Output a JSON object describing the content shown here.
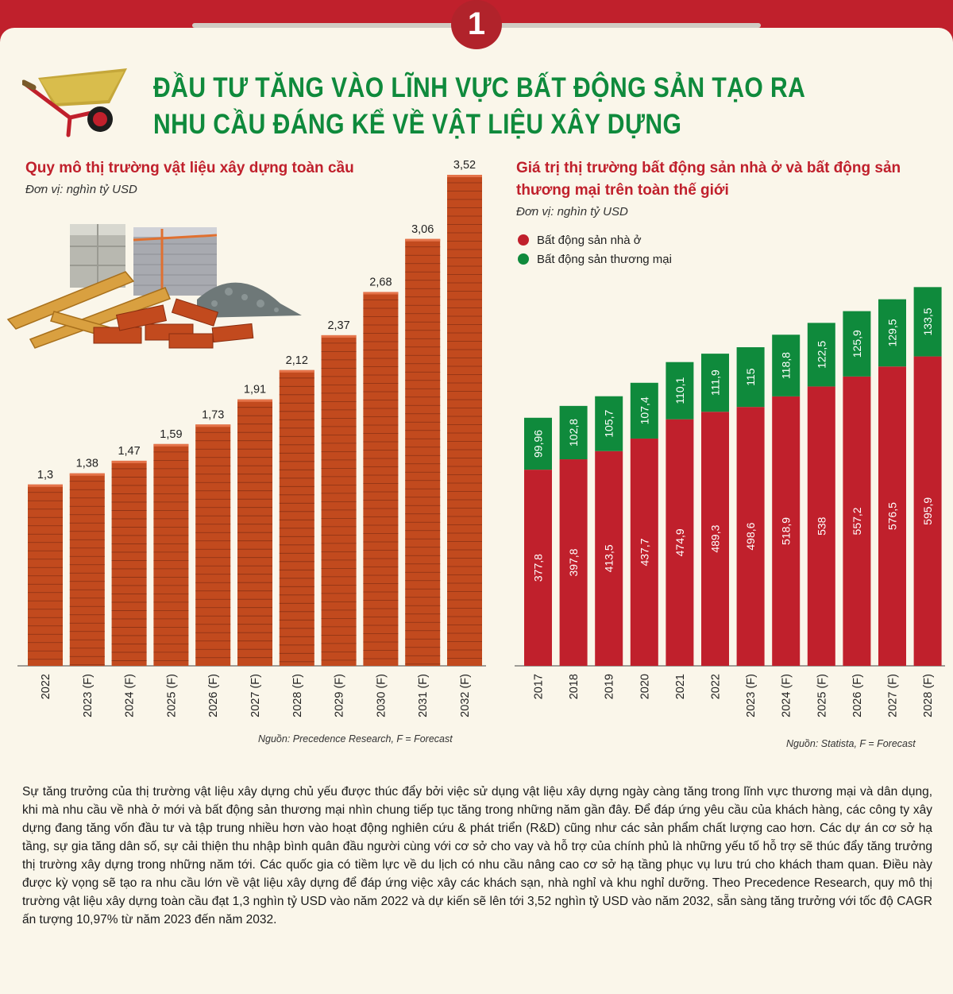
{
  "badge": "1",
  "headline": {
    "line1": "ĐẦU TƯ TĂNG VÀO LĨNH VỰC BẤT ĐỘNG SẢN TẠO RA",
    "line2": "NHU CẦU ĐÁNG KỂ VỀ VẬT LIỆU XÂY DỰNG"
  },
  "colors": {
    "brick": "#c24a1e",
    "residential": "#c0202c",
    "commercial": "#0f8a3c",
    "accent": "#c0202c"
  },
  "chart_data": [
    {
      "type": "bar",
      "title": "Quy mô thị trường vật liệu xây dựng toàn cầu",
      "unit": "Đơn vị: nghìn tỷ USD",
      "categories": [
        "2022",
        "2023 (F)",
        "2024 (F)",
        "2025 (F)",
        "2026 (F)",
        "2027 (F)",
        "2028 (F)",
        "2029 (F)",
        "2030 (F)",
        "2031 (F)",
        "2032 (F)"
      ],
      "values": [
        1.3,
        1.38,
        1.47,
        1.59,
        1.73,
        1.91,
        2.12,
        2.37,
        2.68,
        3.06,
        3.52
      ],
      "value_labels": [
        "1,3",
        "1,38",
        "1,47",
        "1,59",
        "1,73",
        "1,91",
        "2,12",
        "2,37",
        "2,68",
        "3,06",
        "3,52"
      ],
      "ylim": [
        0,
        3.52
      ],
      "source": "Nguồn: Precedence Research, F = Forecast"
    },
    {
      "type": "bar",
      "stacked": true,
      "title": "Giá trị thị trường bất động sản nhà ở và bất động sản thương mại trên toàn thế giới",
      "unit": "Đơn vị: nghìn tỷ USD",
      "categories": [
        "2017",
        "2018",
        "2019",
        "2020",
        "2021",
        "2022",
        "2023 (F)",
        "2024 (F)",
        "2025 (F)",
        "2026 (F)",
        "2027 (F)",
        "2028 (F)"
      ],
      "series": [
        {
          "name": "Bất động sản nhà ở",
          "values": [
            377.8,
            397.8,
            413.5,
            437.7,
            474.9,
            489.3,
            498.6,
            518.9,
            538,
            557.2,
            576.5,
            595.9
          ],
          "labels": [
            "377,8",
            "397,8",
            "413,5",
            "437,7",
            "474,9",
            "489,3",
            "498,6",
            "518,9",
            "538",
            "557,2",
            "576,5",
            "595,9"
          ]
        },
        {
          "name": "Bất động sản thương mại",
          "values": [
            99.96,
            102.8,
            105.7,
            107.4,
            110.1,
            111.9,
            115,
            118.8,
            122.5,
            125.9,
            129.5,
            133.5
          ],
          "labels": [
            "99,96",
            "102,8",
            "105,7",
            "107,4",
            "110,1",
            "111,9",
            "115",
            "118,8",
            "122,5",
            "125,9",
            "129,5",
            "133,5"
          ]
        }
      ],
      "legend": "top-left",
      "source": "Nguồn: Statista, F = Forecast"
    }
  ],
  "paragraph": "Sự tăng trưởng của thị trường vật liệu xây dựng chủ yếu được thúc đẩy bởi việc sử dụng vật liệu xây dựng ngày càng tăng trong lĩnh vực thương mại và dân dụng, khi mà nhu cầu về nhà ở mới và bất động sản thương mại nhìn chung tiếp tục tăng trong những năm gần đây. Để đáp ứng yêu cầu của khách hàng, các công ty xây dựng đang tăng vốn đầu tư và tập trung nhiều hơn vào hoạt động nghiên cứu & phát triển (R&D) cũng như các sản phẩm chất lượng cao hơn. Các dự án cơ sở hạ tầng, sự gia tăng dân số, sự cải thiện thu nhập bình quân đầu người cùng với cơ sở cho vay và hỗ trợ của chính phủ là những yếu tố hỗ trợ sẽ thúc đẩy tăng trưởng thị trường xây dựng trong những năm tới. Các quốc gia có tiềm lực về du lịch có nhu cầu nâng cao cơ sở hạ tầng phục vụ lưu trú cho khách tham quan. Điều này được kỳ vọng sẽ tạo ra nhu cầu lớn về vật liệu xây dựng để đáp ứng việc xây các khách sạn, nhà nghỉ và khu nghỉ dưỡng. Theo Precedence Research, quy mô thị trường vật liệu xây dựng toàn cầu đạt 1,3 nghìn tỷ USD vào năm 2022 và dự kiến sẽ lên tới 3,52 nghìn tỷ USD vào năm 2032, sẵn sàng tăng trưởng với tốc độ CAGR ấn tượng 10,97% từ năm 2023 đến năm 2032."
}
